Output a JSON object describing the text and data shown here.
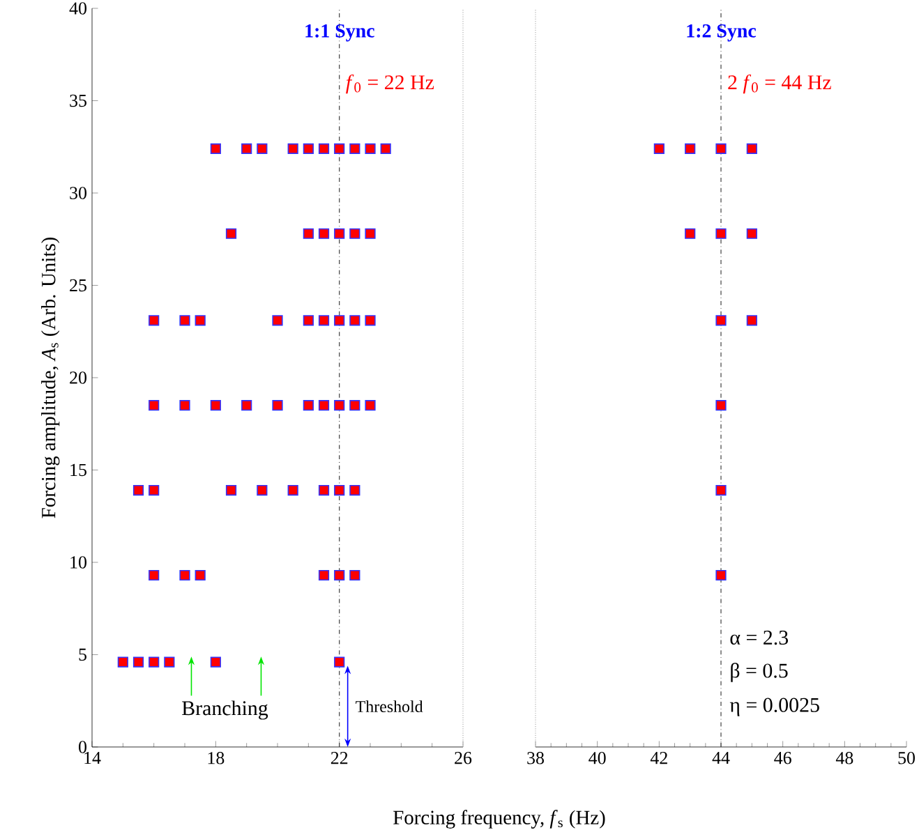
{
  "chart_data": [
    {
      "type": "scatter",
      "xlabel": "Forcing frequency, *f*$_{s}$ (Hz)",
      "ylabel": "Forcing amplitude, *A*$_{s}$ (Arb. Units)",
      "xlim": [
        14,
        26
      ],
      "ylim": [
        0,
        40
      ],
      "xticks": [
        14,
        18,
        22,
        26
      ],
      "yticks": [
        0,
        5,
        10,
        15,
        20,
        25,
        30,
        35,
        40
      ],
      "marker": "square",
      "series": [
        {
          "color": "#ff0000",
          "x": [
            15,
            15.5,
            16,
            16.5,
            18,
            22,
            16,
            17,
            17.5,
            21.5,
            22,
            22.5,
            15.5,
            16,
            18.5,
            19.5,
            20.5,
            21.5,
            22,
            22.5,
            16,
            17,
            18,
            19,
            20,
            21,
            21.5,
            22,
            22.5,
            23,
            16,
            17,
            17.5,
            20,
            21,
            21.5,
            22,
            22.5,
            23,
            18.5,
            21,
            21.5,
            22,
            22.5,
            23,
            18,
            19,
            19.5,
            20.5,
            21,
            21.5,
            22,
            22.5,
            23,
            23.5
          ],
          "values": [
            4.6,
            4.6,
            4.6,
            4.6,
            4.6,
            4.6,
            9.3,
            9.3,
            9.3,
            9.3,
            9.3,
            9.3,
            13.9,
            13.9,
            13.9,
            13.9,
            13.9,
            13.9,
            13.9,
            13.9,
            18.5,
            18.5,
            18.5,
            18.5,
            18.5,
            18.5,
            18.5,
            18.5,
            18.5,
            18.5,
            23.1,
            23.1,
            23.1,
            23.1,
            23.1,
            23.1,
            23.1,
            23.1,
            23.1,
            27.8,
            27.8,
            27.8,
            27.8,
            27.8,
            27.8,
            32.4,
            32.4,
            32.4,
            32.4,
            32.4,
            32.4,
            32.4,
            32.4,
            32.4,
            32.4
          ]
        }
      ],
      "ref_lines": [
        {
          "axis": "x",
          "value": 22,
          "color": "#404040",
          "line_style": "dashdot"
        },
        {
          "axis": "x",
          "value": 26,
          "color": "#b0b0b0",
          "line_style": "dotted"
        }
      ],
      "annotations": [
        "1:1 Sync",
        {
          "text": "*f*$_{0}$ = 22 Hz",
          "x": 22,
          "y": 35.9
        },
        "Branching",
        {
          "text": "Threshold",
          "x": 22.27,
          "y": 4.4
        }
      ]
    },
    {
      "type": "scatter",
      "xlim": [
        38,
        50
      ],
      "ylim": [
        0,
        40
      ],
      "xticks": [
        38,
        40,
        42,
        44,
        46,
        48,
        50
      ],
      "tick_labels": "x",
      "marker": "square",
      "series": [
        {
          "color": "#ff0000",
          "x": [
            44,
            44,
            44,
            44,
            45,
            43,
            44,
            45,
            42,
            43,
            44,
            45
          ],
          "values": [
            9.3,
            13.9,
            18.5,
            23.1,
            23.1,
            27.8,
            27.8,
            27.8,
            32.4,
            32.4,
            32.4,
            32.4
          ]
        }
      ],
      "ref_lines": [
        {
          "axis": "x",
          "value": 38,
          "color": "#b0b0b0",
          "line_style": "dotted"
        },
        {
          "axis": "x",
          "value": 44,
          "color": "#404040",
          "line_style": "dashdot"
        }
      ],
      "annotations": [
        "1:2 Sync",
        {
          "text": "2 *f*$_{0}$ = 44 Hz",
          "x": 44,
          "y": 35.9
        },
        "α = 2.3",
        "β = 0.5",
        "η = 0.0025"
      ]
    }
  ]
}
